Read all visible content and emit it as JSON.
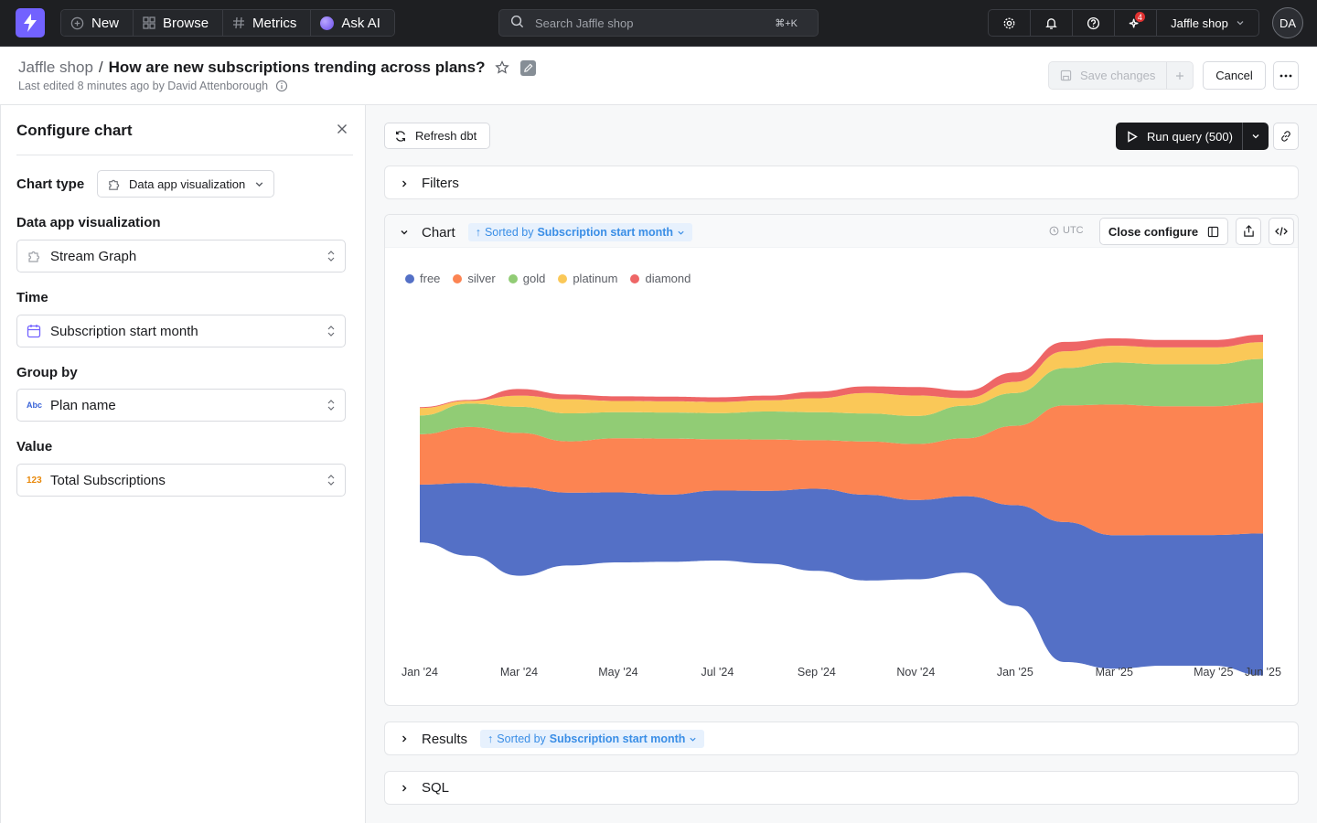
{
  "nav": {
    "new_label": "New",
    "browse_label": "Browse",
    "metrics_label": "Metrics",
    "askai_label": "Ask AI",
    "search_placeholder": "Search Jaffle shop",
    "search_shortcut": "⌘+K",
    "notification_count": "4",
    "project_name": "Jaffle shop",
    "avatar_initials": "DA"
  },
  "header": {
    "space": "Jaffle shop",
    "separator": "/",
    "title": "How are new subscriptions trending across plans?",
    "last_edited": "Last edited 8 minutes ago by David Attenborough",
    "save_label": "Save changes",
    "cancel_label": "Cancel"
  },
  "sidebar": {
    "title": "Configure chart",
    "chart_type_label": "Chart type",
    "chart_type_value": "Data app visualization",
    "fields": [
      {
        "label": "Data app visualization",
        "value": "Stream Graph",
        "icon": "puzzle-icon"
      },
      {
        "label": "Time",
        "value": "Subscription start month",
        "icon": "calendar-icon"
      },
      {
        "label": "Group by",
        "value": "Plan name",
        "icon": "text-type-icon"
      },
      {
        "label": "Value",
        "value": "Total Subscriptions",
        "icon": "number-type-icon"
      }
    ],
    "text_icon_glyph": "Abc",
    "number_icon_glyph": "123"
  },
  "main": {
    "refresh_label": "Refresh dbt",
    "run_query_label": "Run query (500)",
    "filters_label": "Filters",
    "chart_label": "Chart",
    "sorted_by_prefix": "Sorted by",
    "sorted_by_field": "Subscription start month",
    "timezone": "UTC",
    "close_configure_label": "Close configure",
    "results_label": "Results",
    "sql_label": "SQL"
  },
  "colors": {
    "free": "#5470c6",
    "silver": "#fc8452",
    "gold": "#91cc75",
    "platinum": "#fac858",
    "diamond": "#ee6666",
    "brand": "#7262ff"
  },
  "chart_data": {
    "type": "area",
    "subtype": "streamgraph",
    "x": [
      "2024-01",
      "2024-02",
      "2024-03",
      "2024-04",
      "2024-05",
      "2024-06",
      "2024-07",
      "2024-08",
      "2024-09",
      "2024-10",
      "2024-11",
      "2024-12",
      "2025-01",
      "2025-02",
      "2025-03",
      "2025-04",
      "2025-05",
      "2025-06"
    ],
    "x_tick_labels": [
      "Jan '24",
      "Mar '24",
      "May '24",
      "Jul '24",
      "Sep '24",
      "Nov '24",
      "Jan '25",
      "Mar '25",
      "May '25",
      "Jun '25"
    ],
    "x_tick_dates": [
      "2024-01",
      "2024-03",
      "2024-05",
      "2024-07",
      "2024-09",
      "2024-11",
      "2025-01",
      "2025-03",
      "2025-05",
      "2025-06"
    ],
    "series": [
      {
        "name": "free",
        "values": [
          62,
          78,
          95,
          78,
          75,
          72,
          75,
          78,
          88,
          92,
          85,
          82,
          108,
          150,
          143,
          140,
          140,
          152
        ]
      },
      {
        "name": "silver",
        "values": [
          54,
          60,
          58,
          55,
          58,
          60,
          55,
          55,
          52,
          57,
          60,
          62,
          85,
          125,
          140,
          138,
          138,
          140
        ]
      },
      {
        "name": "gold",
        "values": [
          20,
          25,
          28,
          30,
          28,
          28,
          28,
          30,
          30,
          30,
          30,
          35,
          35,
          40,
          45,
          45,
          45,
          47
        ]
      },
      {
        "name": "platinum",
        "values": [
          8,
          3,
          12,
          15,
          12,
          12,
          12,
          12,
          15,
          22,
          22,
          8,
          12,
          18,
          18,
          18,
          18,
          18
        ]
      },
      {
        "name": "diamond",
        "values": [
          1,
          1,
          7,
          5,
          5,
          5,
          5,
          5,
          7,
          7,
          9,
          8,
          10,
          10,
          8,
          8,
          8,
          8
        ]
      }
    ],
    "legend_position": "top-left",
    "grid": false
  }
}
